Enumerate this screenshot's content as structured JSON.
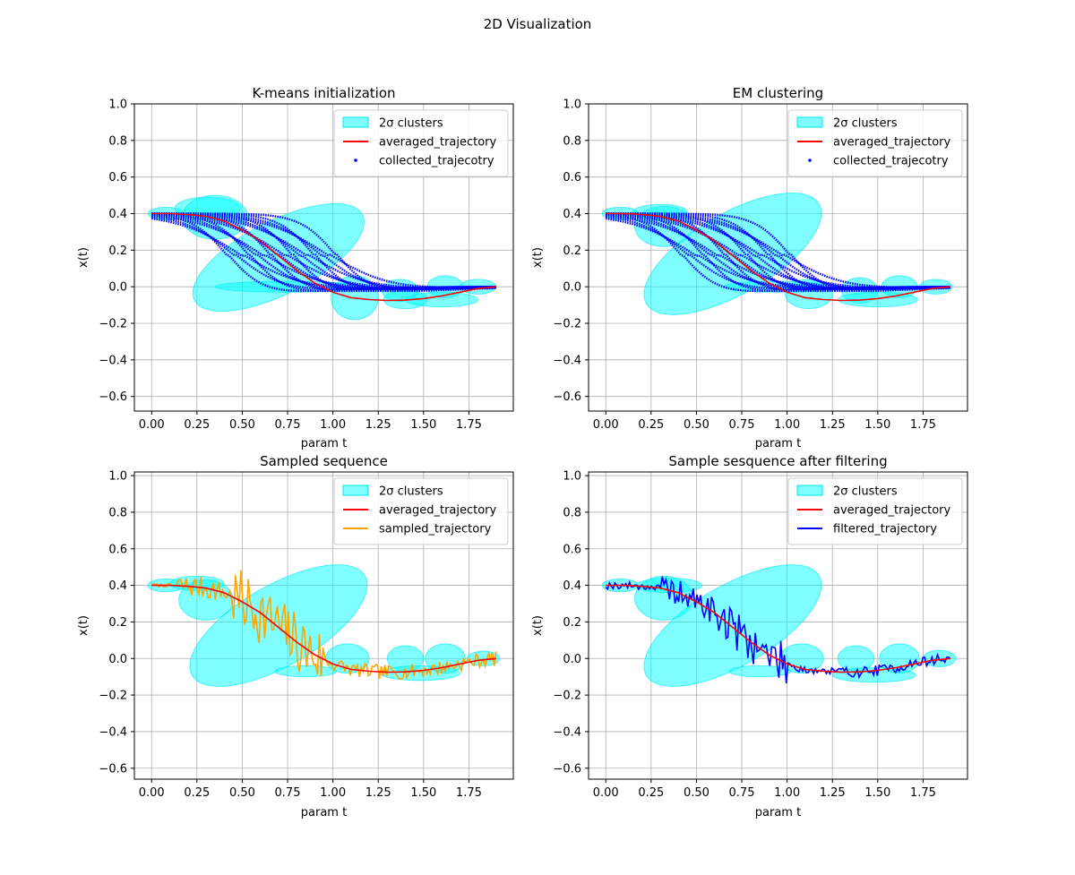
{
  "figure": {
    "title": "2D Visualization"
  },
  "colors": {
    "cluster_fill": "#00ffff",
    "cluster_edge": "#00e5ee",
    "averaged": "#ff0000",
    "collected": "#0000ff",
    "sampled": "#ffa500",
    "filtered": "#0000ff",
    "grid": "#b0b0b0"
  },
  "chart_data": [
    {
      "type": "scatter",
      "title": "K-means initialization",
      "xlabel": "param t",
      "ylabel": "x(t)",
      "xlim": [
        -0.095,
        1.995
      ],
      "ylim": [
        -0.68,
        1.0
      ],
      "xticks": [
        "0.00",
        "0.25",
        "0.50",
        "0.75",
        "1.00",
        "1.25",
        "1.50",
        "1.75"
      ],
      "yticks": [
        "−0.6",
        "−0.4",
        "−0.2",
        "0.0",
        "0.2",
        "0.4",
        "0.6",
        "0.8",
        "1.0"
      ],
      "grid": true,
      "legend": {
        "position": "upper right",
        "entries": [
          {
            "kind": "patch",
            "label": "2σ clusters"
          },
          {
            "kind": "line",
            "label": "averaged_trajectory",
            "color": "#ff0000"
          },
          {
            "kind": "point",
            "label": "collected_trajecotry",
            "color": "#0000ff"
          }
        ]
      },
      "clusters": [
        {
          "cx": 0.08,
          "cy": 0.4,
          "rx": 0.1,
          "ry": 0.035,
          "angle": 0
        },
        {
          "cx": 0.31,
          "cy": 0.43,
          "rx": 0.18,
          "ry": 0.06,
          "angle": 0
        },
        {
          "cx": 0.35,
          "cy": 0.38,
          "rx": 0.18,
          "ry": 0.12,
          "angle": 0
        },
        {
          "cx": 0.7,
          "cy": 0.16,
          "rx": 0.52,
          "ry": 0.2,
          "angle": -27
        },
        {
          "cx": 0.75,
          "cy": 0.0,
          "rx": 0.4,
          "ry": 0.03,
          "angle": 0
        },
        {
          "cx": 1.12,
          "cy": -0.06,
          "rx": 0.13,
          "ry": 0.12,
          "angle": 0
        },
        {
          "cx": 1.4,
          "cy": -0.07,
          "rx": 0.12,
          "ry": 0.05,
          "angle": 0
        },
        {
          "cx": 1.37,
          "cy": -0.02,
          "rx": 0.1,
          "ry": 0.06,
          "angle": 0
        },
        {
          "cx": 1.6,
          "cy": -0.07,
          "rx": 0.2,
          "ry": 0.04,
          "angle": 0
        },
        {
          "cx": 1.62,
          "cy": 0.0,
          "rx": 0.1,
          "ry": 0.06,
          "angle": 0
        },
        {
          "cx": 1.8,
          "cy": 0.0,
          "rx": 0.1,
          "ry": 0.04,
          "angle": 0
        }
      ],
      "series": [
        {
          "name": "collected_trajecotry",
          "kind": "band_scatter",
          "color": "#0000ff",
          "t_range": [
            0.0,
            1.9
          ],
          "y_start": 0.4,
          "y_min": -0.07,
          "y_end": 0.0,
          "curves": 16,
          "center_min": 0.42,
          "center_max": 1.02
        },
        {
          "name": "averaged_trajectory",
          "kind": "line",
          "color": "#ff0000",
          "x": [
            0.0,
            0.1,
            0.2,
            0.3,
            0.4,
            0.5,
            0.6,
            0.7,
            0.8,
            0.9,
            1.0,
            1.1,
            1.2,
            1.3,
            1.4,
            1.5,
            1.6,
            1.7,
            1.8,
            1.9
          ],
          "y": [
            0.4,
            0.4,
            0.395,
            0.385,
            0.36,
            0.31,
            0.25,
            0.17,
            0.09,
            0.02,
            -0.03,
            -0.06,
            -0.07,
            -0.075,
            -0.073,
            -0.065,
            -0.05,
            -0.03,
            -0.01,
            0.0
          ]
        }
      ]
    },
    {
      "type": "scatter",
      "title": "EM clustering",
      "xlabel": "param t",
      "ylabel": "x(t)",
      "xlim": [
        -0.095,
        1.995
      ],
      "ylim": [
        -0.68,
        1.0
      ],
      "xticks": [
        "0.00",
        "0.25",
        "0.50",
        "0.75",
        "1.00",
        "1.25",
        "1.50",
        "1.75"
      ],
      "yticks": [
        "−0.6",
        "−0.4",
        "−0.2",
        "0.0",
        "0.2",
        "0.4",
        "0.6",
        "0.8",
        "1.0"
      ],
      "grid": true,
      "legend": {
        "position": "upper right",
        "entries": [
          {
            "kind": "patch",
            "label": "2σ clusters"
          },
          {
            "kind": "line",
            "label": "averaged_trajectory",
            "color": "#ff0000"
          },
          {
            "kind": "point",
            "label": "collected_trajecotry",
            "color": "#0000ff"
          }
        ]
      },
      "clusters": [
        {
          "cx": 0.08,
          "cy": 0.4,
          "rx": 0.1,
          "ry": 0.035,
          "angle": 0
        },
        {
          "cx": 0.3,
          "cy": 0.41,
          "rx": 0.15,
          "ry": 0.04,
          "angle": 0
        },
        {
          "cx": 0.32,
          "cy": 0.33,
          "rx": 0.16,
          "ry": 0.11,
          "angle": 0
        },
        {
          "cx": 0.7,
          "cy": 0.18,
          "rx": 0.55,
          "ry": 0.22,
          "angle": -30
        },
        {
          "cx": 0.95,
          "cy": 0.0,
          "rx": 0.3,
          "ry": 0.03,
          "angle": 0
        },
        {
          "cx": 1.12,
          "cy": -0.04,
          "rx": 0.13,
          "ry": 0.08,
          "angle": 0
        },
        {
          "cx": 1.4,
          "cy": -0.02,
          "rx": 0.1,
          "ry": 0.07,
          "angle": 0
        },
        {
          "cx": 1.5,
          "cy": -0.07,
          "rx": 0.22,
          "ry": 0.04,
          "angle": 0
        },
        {
          "cx": 1.62,
          "cy": 0.0,
          "rx": 0.1,
          "ry": 0.06,
          "angle": 0
        },
        {
          "cx": 1.82,
          "cy": 0.0,
          "rx": 0.09,
          "ry": 0.04,
          "angle": 0
        }
      ],
      "series": [
        {
          "name": "collected_trajecotry",
          "kind": "band_scatter",
          "color": "#0000ff",
          "t_range": [
            0.0,
            1.9
          ],
          "y_start": 0.4,
          "y_min": -0.07,
          "y_end": 0.0,
          "curves": 16,
          "center_min": 0.42,
          "center_max": 1.02
        },
        {
          "name": "averaged_trajectory",
          "kind": "line",
          "color": "#ff0000",
          "x": [
            0.0,
            0.1,
            0.2,
            0.3,
            0.4,
            0.5,
            0.6,
            0.7,
            0.8,
            0.9,
            1.0,
            1.1,
            1.2,
            1.3,
            1.4,
            1.5,
            1.6,
            1.7,
            1.8,
            1.9
          ],
          "y": [
            0.4,
            0.4,
            0.395,
            0.385,
            0.36,
            0.31,
            0.25,
            0.17,
            0.09,
            0.02,
            -0.03,
            -0.06,
            -0.07,
            -0.075,
            -0.073,
            -0.065,
            -0.05,
            -0.03,
            -0.01,
            0.0
          ]
        }
      ]
    },
    {
      "type": "line",
      "title": "Sampled sequence",
      "xlabel": "param t",
      "ylabel": "x(t)",
      "xlim": [
        -0.095,
        1.995
      ],
      "ylim": [
        -0.66,
        1.02
      ],
      "xticks": [
        "0.00",
        "0.25",
        "0.50",
        "0.75",
        "1.00",
        "1.25",
        "1.50",
        "1.75"
      ],
      "yticks": [
        "−0.6",
        "−0.4",
        "−0.2",
        "0.0",
        "0.2",
        "0.4",
        "0.6",
        "0.8",
        "1.0"
      ],
      "grid": true,
      "legend": {
        "position": "upper right",
        "entries": [
          {
            "kind": "patch",
            "label": "2σ clusters"
          },
          {
            "kind": "line",
            "label": "averaged_trajectory",
            "color": "#ff0000"
          },
          {
            "kind": "line",
            "label": "sampled_trajectory",
            "color": "#ffa500"
          }
        ]
      },
      "clusters": [
        {
          "cx": 0.08,
          "cy": 0.4,
          "rx": 0.1,
          "ry": 0.035,
          "angle": 0
        },
        {
          "cx": 0.25,
          "cy": 0.41,
          "rx": 0.15,
          "ry": 0.04,
          "angle": 0
        },
        {
          "cx": 0.3,
          "cy": 0.32,
          "rx": 0.15,
          "ry": 0.11,
          "angle": 0
        },
        {
          "cx": 0.7,
          "cy": 0.18,
          "rx": 0.55,
          "ry": 0.22,
          "angle": -30
        },
        {
          "cx": 0.85,
          "cy": -0.07,
          "rx": 0.17,
          "ry": 0.03,
          "angle": 0
        },
        {
          "cx": 1.08,
          "cy": 0.0,
          "rx": 0.12,
          "ry": 0.08,
          "angle": 0
        },
        {
          "cx": 1.4,
          "cy": 0.0,
          "rx": 0.1,
          "ry": 0.07,
          "angle": 0
        },
        {
          "cx": 1.48,
          "cy": -0.08,
          "rx": 0.22,
          "ry": 0.04,
          "angle": 0
        },
        {
          "cx": 1.62,
          "cy": 0.0,
          "rx": 0.11,
          "ry": 0.08,
          "angle": 0
        },
        {
          "cx": 1.83,
          "cy": 0.0,
          "rx": 0.09,
          "ry": 0.04,
          "angle": 0
        }
      ],
      "series": [
        {
          "name": "averaged_trajectory",
          "kind": "line",
          "color": "#ff0000",
          "x": [
            0.0,
            0.1,
            0.2,
            0.3,
            0.4,
            0.5,
            0.6,
            0.7,
            0.8,
            0.9,
            1.0,
            1.1,
            1.2,
            1.3,
            1.4,
            1.5,
            1.6,
            1.7,
            1.8,
            1.9
          ],
          "y": [
            0.4,
            0.4,
            0.395,
            0.385,
            0.36,
            0.31,
            0.25,
            0.17,
            0.09,
            0.02,
            -0.03,
            -0.06,
            -0.07,
            -0.075,
            -0.073,
            -0.065,
            -0.05,
            -0.03,
            -0.01,
            0.0
          ]
        },
        {
          "name": "sampled_trajectory",
          "kind": "noisy_line",
          "color": "#ffa500",
          "points": 190,
          "seed": 7,
          "noise": [
            {
              "from": 0.0,
              "to": 0.14,
              "amp": 0.01
            },
            {
              "from": 0.14,
              "to": 0.45,
              "amp": 0.06
            },
            {
              "from": 0.45,
              "to": 0.95,
              "amp": 0.17
            },
            {
              "from": 0.95,
              "to": 1.9,
              "amp": 0.04
            }
          ]
        }
      ]
    },
    {
      "type": "line",
      "title": "Sample sesquence after filtering",
      "xlabel": "param t",
      "ylabel": "x(t)",
      "xlim": [
        -0.095,
        1.995
      ],
      "ylim": [
        -0.66,
        1.02
      ],
      "xticks": [
        "0.00",
        "0.25",
        "0.50",
        "0.75",
        "1.00",
        "1.25",
        "1.50",
        "1.75"
      ],
      "yticks": [
        "−0.6",
        "−0.4",
        "−0.2",
        "0.0",
        "0.2",
        "0.4",
        "0.6",
        "0.8",
        "1.0"
      ],
      "grid": true,
      "legend": {
        "position": "upper right",
        "entries": [
          {
            "kind": "patch",
            "label": "2σ clusters"
          },
          {
            "kind": "line",
            "label": "averaged_trajectory",
            "color": "#ff0000"
          },
          {
            "kind": "line",
            "label": "filtered_trajectory",
            "color": "#0000ff"
          }
        ]
      },
      "clusters": [
        {
          "cx": 0.08,
          "cy": 0.4,
          "rx": 0.1,
          "ry": 0.035,
          "angle": 0
        },
        {
          "cx": 0.35,
          "cy": 0.4,
          "rx": 0.18,
          "ry": 0.04,
          "angle": 0
        },
        {
          "cx": 0.32,
          "cy": 0.33,
          "rx": 0.16,
          "ry": 0.12,
          "angle": 0
        },
        {
          "cx": 0.7,
          "cy": 0.18,
          "rx": 0.55,
          "ry": 0.22,
          "angle": -30
        },
        {
          "cx": 0.85,
          "cy": -0.07,
          "rx": 0.17,
          "ry": 0.03,
          "angle": 0
        },
        {
          "cx": 1.08,
          "cy": 0.0,
          "rx": 0.12,
          "ry": 0.08,
          "angle": 0
        },
        {
          "cx": 1.38,
          "cy": 0.0,
          "rx": 0.1,
          "ry": 0.07,
          "angle": 0
        },
        {
          "cx": 1.48,
          "cy": -0.09,
          "rx": 0.23,
          "ry": 0.04,
          "angle": 0
        },
        {
          "cx": 1.62,
          "cy": 0.0,
          "rx": 0.11,
          "ry": 0.08,
          "angle": 0
        },
        {
          "cx": 1.84,
          "cy": 0.0,
          "rx": 0.09,
          "ry": 0.045,
          "angle": 0
        }
      ],
      "series": [
        {
          "name": "averaged_trajectory",
          "kind": "line",
          "color": "#ff0000",
          "x": [
            0.0,
            0.1,
            0.2,
            0.3,
            0.4,
            0.5,
            0.6,
            0.7,
            0.8,
            0.9,
            1.0,
            1.1,
            1.2,
            1.3,
            1.4,
            1.5,
            1.6,
            1.7,
            1.8,
            1.9
          ],
          "y": [
            0.4,
            0.4,
            0.395,
            0.385,
            0.36,
            0.31,
            0.25,
            0.17,
            0.09,
            0.02,
            -0.03,
            -0.06,
            -0.07,
            -0.075,
            -0.073,
            -0.065,
            -0.05,
            -0.03,
            -0.01,
            0.0
          ]
        },
        {
          "name": "filtered_trajectory",
          "kind": "noisy_line",
          "color": "#0000ff",
          "points": 190,
          "seed": 19,
          "noise": [
            {
              "from": 0.0,
              "to": 0.3,
              "amp": 0.02
            },
            {
              "from": 0.3,
              "to": 0.55,
              "amp": 0.07
            },
            {
              "from": 0.55,
              "to": 1.0,
              "amp": 0.11
            },
            {
              "from": 1.0,
              "to": 1.9,
              "amp": 0.03
            }
          ]
        }
      ]
    }
  ]
}
